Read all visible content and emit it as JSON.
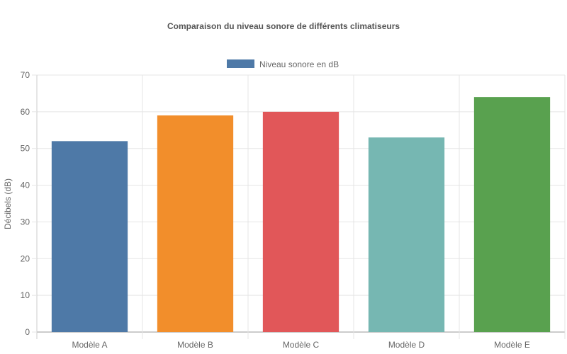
{
  "chart_data": {
    "type": "bar",
    "title": "Comparaison du niveau sonore de différents climatiseurs",
    "categories": [
      "Modèle A",
      "Modèle B",
      "Modèle C",
      "Modèle D",
      "Modèle E"
    ],
    "series": [
      {
        "name": "Niveau sonore en dB",
        "values": [
          52,
          59,
          60,
          53,
          64
        ],
        "colors": [
          "#4e79a7",
          "#f28e2b",
          "#e15759",
          "#76b7b2",
          "#59a14f"
        ]
      }
    ],
    "legend_color": "#4e79a7",
    "xlabel": "",
    "ylabel": "Décibels (dB)",
    "ylim": [
      0,
      70
    ],
    "yticks": [
      0,
      10,
      20,
      30,
      40,
      50,
      60,
      70
    ],
    "grid": true,
    "legend_position": "top-center"
  }
}
